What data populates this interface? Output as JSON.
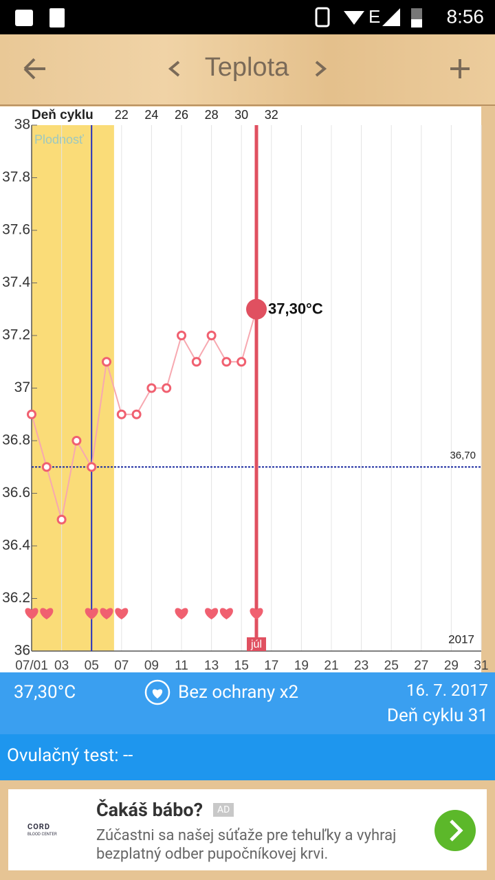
{
  "status_bar": {
    "network": "E",
    "time": "8:56"
  },
  "app_bar": {
    "title": "Teplota"
  },
  "chart_data": {
    "type": "line",
    "x": [
      1,
      2,
      3,
      4,
      5,
      6,
      7,
      8,
      9,
      10,
      11,
      12,
      13,
      14,
      15,
      16
    ],
    "values": [
      36.9,
      36.7,
      36.5,
      36.8,
      36.7,
      37.1,
      36.9,
      36.9,
      37.0,
      37.0,
      37.2,
      37.1,
      37.2,
      37.1,
      37.1,
      37.3
    ],
    "color": "#f06070",
    "line_color": "#f7a8b0",
    "xlim": [
      1,
      31
    ],
    "xticks": [
      {
        "value": 1,
        "label": "07/01"
      },
      {
        "value": 3,
        "label": "03"
      },
      {
        "value": 5,
        "label": "05"
      },
      {
        "value": 7,
        "label": "07"
      },
      {
        "value": 9,
        "label": "09"
      },
      {
        "value": 11,
        "label": "11"
      },
      {
        "value": 13,
        "label": "13"
      },
      {
        "value": 15,
        "label": "15"
      },
      {
        "value": 17,
        "label": "17"
      },
      {
        "value": 19,
        "label": "19"
      },
      {
        "value": 21,
        "label": "21"
      },
      {
        "value": 23,
        "label": "23"
      },
      {
        "value": 25,
        "label": "25"
      },
      {
        "value": 27,
        "label": "27"
      },
      {
        "value": 29,
        "label": "29"
      },
      {
        "value": 31,
        "label": "31"
      }
    ],
    "ylim": [
      36,
      38
    ],
    "yticks": [
      36,
      36.2,
      36.4,
      36.6,
      36.8,
      37,
      37.2,
      37.4,
      37.6,
      37.8,
      38
    ],
    "grid": true,
    "top_axis": {
      "title": "Deň cyklu",
      "ticks": [
        {
          "value": 7,
          "label": "22"
        },
        {
          "value": 9,
          "label": "24"
        },
        {
          "value": 11,
          "label": "26"
        },
        {
          "value": 13,
          "label": "28"
        },
        {
          "value": 15,
          "label": "30"
        },
        {
          "value": 17,
          "label": "32"
        }
      ]
    },
    "fertile_window": {
      "label": "Plodnosť",
      "range": [
        1,
        6.5
      ],
      "color": "#fadc78"
    },
    "ovulation_day": 5,
    "cover_line": {
      "value": 36.7,
      "label": "36,70"
    },
    "selected": {
      "x": 16,
      "label": "37,30°C",
      "month_label": "júl"
    },
    "year_label": "2017",
    "intercourse_days": [
      1,
      2,
      5,
      6,
      7,
      11,
      13,
      14,
      16
    ]
  },
  "summary": {
    "temperature": "37,30°C",
    "intercourse": "Bez ochrany x2",
    "date": "16. 7. 2017",
    "cycle_day": "Deň cyklu 31"
  },
  "ovulation_test": "Ovulačný test: --",
  "ad": {
    "logo_top": "CORD",
    "logo_bottom": "BLOOD CENTER",
    "title": "Čakáš bábo?",
    "badge": "AD",
    "text": "Zúčastni sa našej súťaže pre tehuľky a vyhraj bezplatný odber pupočníkovej krvi."
  }
}
